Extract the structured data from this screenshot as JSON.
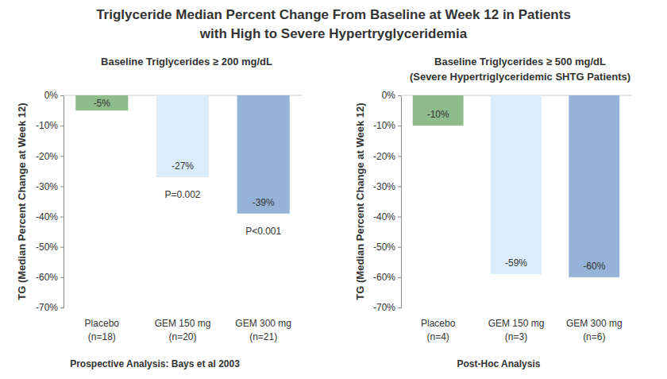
{
  "title": [
    "Triglyceride Median Percent Change From Baseline at Week 12 in Patients",
    "with High to Severe Hypertryglyceridemia"
  ],
  "chart_data": [
    {
      "type": "bar",
      "title": "Baseline Triglycerides ≥ 200 mg/dL",
      "y_label": "TG (Median Percent Change at Week 12)",
      "categories": [
        "Placebo\n(n=18)",
        "GEM 150 mg\n(n=20)",
        "GEM 300 mg\n(n=21)"
      ],
      "values": [
        -5,
        -27,
        -39
      ],
      "value_labels": [
        "-5%",
        "-27%",
        "-39%"
      ],
      "colors": [
        "#8fbc8b",
        "#dbedfa",
        "#94b3d6"
      ],
      "p_values": [
        null,
        "P=0.002",
        "P<0.001"
      ],
      "caption": "Prospective Analysis: Bays et al 2003",
      "data_labels": true,
      "ylim": [
        -70,
        0
      ],
      "yticks": [
        {
          "value": 0,
          "label": "0%"
        },
        {
          "value": -10,
          "label": "-10%"
        },
        {
          "value": -20,
          "label": "-20%"
        },
        {
          "value": -30,
          "label": "-30%"
        },
        {
          "value": -40,
          "label": "-40%"
        },
        {
          "value": -50,
          "label": "-50%"
        },
        {
          "value": -60,
          "label": "-60%"
        },
        {
          "value": -70,
          "label": "-70%"
        }
      ]
    },
    {
      "type": "bar",
      "title": "Baseline Triglycerides ≥ 500 mg/dL",
      "subtitle": "(Severe Hypertriglyceridemic SHTG Patients)",
      "y_label": "TG (Median Percent Change at Week 12)",
      "categories": [
        "Placebo\n(n=4)",
        "GEM 150 mg\n(n=3)",
        "GEM 300 mg\n(n=6)"
      ],
      "values": [
        -10,
        -59,
        -60
      ],
      "value_labels": [
        "-10%",
        "-59%",
        "-60%"
      ],
      "colors": [
        "#8fbc8b",
        "#dbedfa",
        "#94b3d6"
      ],
      "caption": "Post-Hoc Analysis",
      "data_labels": true,
      "ylim": [
        -70,
        0
      ],
      "yticks": [
        {
          "value": 0,
          "label": "0%"
        },
        {
          "value": -10,
          "label": "-10%"
        },
        {
          "value": -20,
          "label": "-20%"
        },
        {
          "value": -30,
          "label": "-30%"
        },
        {
          "value": -40,
          "label": "-40%"
        },
        {
          "value": -50,
          "label": "-50%"
        },
        {
          "value": -60,
          "label": "-60%"
        },
        {
          "value": -70,
          "label": "-70%"
        }
      ]
    }
  ]
}
